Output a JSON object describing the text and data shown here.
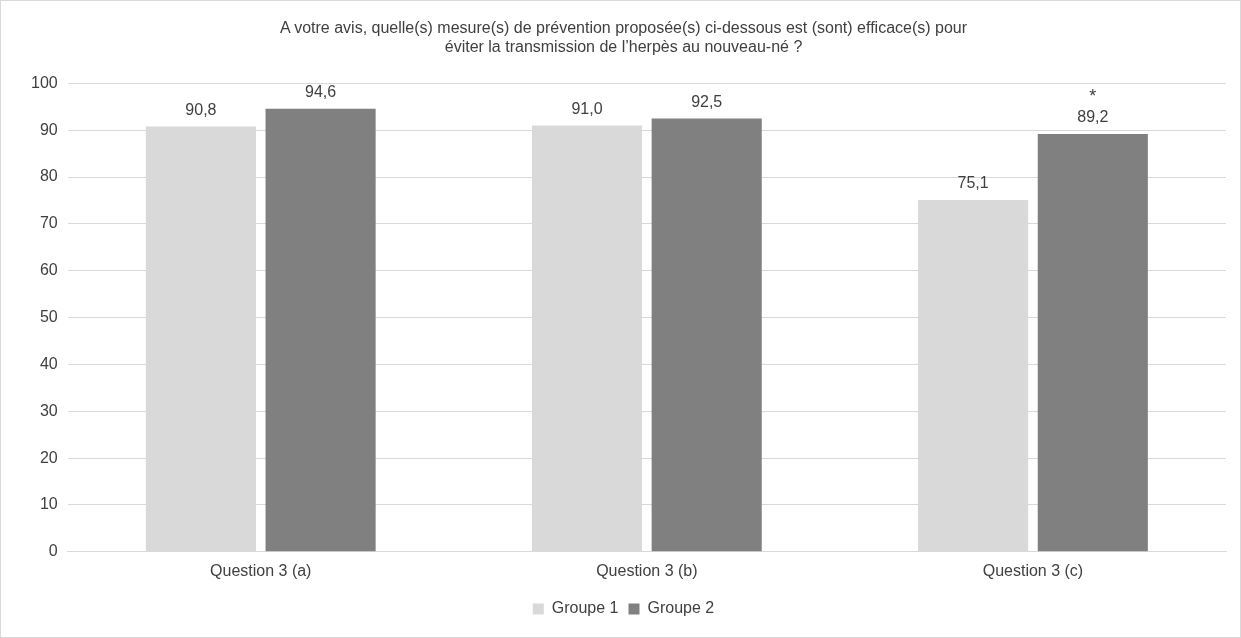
{
  "chart_data": {
    "type": "bar",
    "title": "A votre avis, quelle(s) mesure(s) de prévention proposée(s) ci-dessous est (sont) efficace(s) pour éviter la transmission de l’herpès au nouveau-né ?",
    "categories": [
      "Question 3 (a)",
      "Question 3 (b)",
      "Question 3 (c)"
    ],
    "series": [
      {
        "name": "Groupe 1",
        "color": "#d9d9d9",
        "values": [
          90.8,
          91.0,
          75.1
        ],
        "value_labels": [
          "90,8",
          "91,0",
          "75,1"
        ]
      },
      {
        "name": "Groupe 2",
        "color": "#808080",
        "values": [
          94.6,
          92.5,
          89.2
        ],
        "value_labels": [
          "94,6",
          "92,5",
          "89,2"
        ]
      }
    ],
    "ylim": [
      0,
      100
    ],
    "yticks": [
      0,
      10,
      20,
      30,
      40,
      50,
      60,
      70,
      80,
      90,
      100
    ],
    "grid": "y",
    "legend": "bottom",
    "annotations": [
      "*"
    ]
  }
}
